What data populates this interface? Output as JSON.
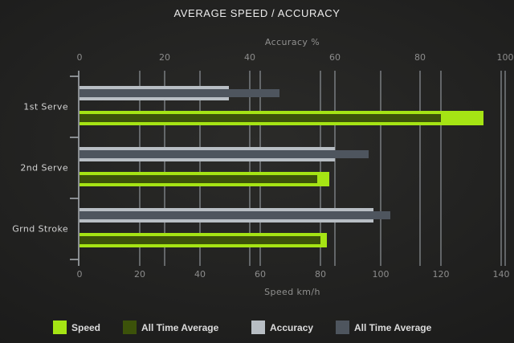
{
  "title": "AVERAGE SPEED / ACCURACY",
  "chart_data": {
    "type": "bar",
    "orientation": "horizontal",
    "title": "AVERAGE SPEED / ACCURACY",
    "categories": [
      "1st Serve",
      "2nd Serve",
      "Grnd Stroke"
    ],
    "series": [
      {
        "name": "Speed",
        "axis": "bottom",
        "color": "#a5e414",
        "values": [
          134,
          83,
          82
        ]
      },
      {
        "name": "All Time Average",
        "axis": "bottom",
        "color": "#3c520a",
        "values": [
          120,
          79,
          80
        ]
      },
      {
        "name": "Accuracy",
        "axis": "top",
        "color": "#b8bec4",
        "values": [
          35,
          60,
          69
        ]
      },
      {
        "name": "All Time Average",
        "axis": "top",
        "color": "#4e555e",
        "values": [
          47,
          68,
          73
        ]
      }
    ],
    "axes": {
      "top": {
        "label": "Accuracy %",
        "min": 0,
        "max": 100,
        "ticks": [
          0,
          20,
          40,
          60,
          80,
          100
        ]
      },
      "bottom": {
        "label": "Speed km/h",
        "min": 0,
        "max": 140,
        "ticks": [
          0,
          20,
          40,
          60,
          80,
          100,
          120,
          140
        ]
      }
    },
    "legend": [
      {
        "label": "Speed",
        "color": "#a5e414"
      },
      {
        "label": "All Time Average",
        "color": "#3c520a"
      },
      {
        "label": "Accuracy",
        "color": "#b8bec4"
      },
      {
        "label": "All Time Average",
        "color": "#4e555e"
      }
    ],
    "grid": true,
    "legend_position": "bottom"
  },
  "colors": {
    "background_center": "#2b2b29",
    "background_edge": "#121212",
    "gridline": "#8a8f94",
    "title_text": "#ececec",
    "tick_text": "#8c8c8c",
    "category_text": "#d2d2d2",
    "legend_text": "#dcdcdc"
  }
}
